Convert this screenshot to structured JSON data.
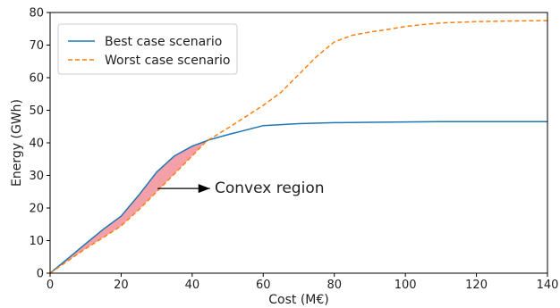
{
  "chart_data": {
    "type": "line",
    "xlabel": "Cost (M€)",
    "ylabel": "Energy (GWh)",
    "xlim": [
      0,
      140
    ],
    "ylim": [
      0,
      80
    ],
    "x_ticks": [
      0,
      20,
      40,
      60,
      80,
      100,
      120,
      140
    ],
    "y_ticks": [
      0,
      10,
      20,
      30,
      40,
      50,
      60,
      70,
      80
    ],
    "grid": false,
    "legend_position": "top-left",
    "series": [
      {
        "name": "Best case scenario",
        "color": "#1f77b4",
        "style": "solid",
        "points": [
          [
            0,
            0
          ],
          [
            5,
            4.5
          ],
          [
            10,
            9
          ],
          [
            15,
            13.5
          ],
          [
            20,
            17.5
          ],
          [
            25,
            24
          ],
          [
            30,
            31
          ],
          [
            35,
            36
          ],
          [
            40,
            39
          ],
          [
            45,
            41
          ],
          [
            50,
            42.5
          ],
          [
            60,
            45.3
          ],
          [
            70,
            45.9
          ],
          [
            80,
            46.2
          ],
          [
            90,
            46.3
          ],
          [
            100,
            46.4
          ],
          [
            110,
            46.5
          ],
          [
            120,
            46.5
          ],
          [
            130,
            46.5
          ],
          [
            140,
            46.5
          ]
        ]
      },
      {
        "name": "Worst case scenario",
        "color": "#ff7f0e",
        "style": "dashed",
        "points": [
          [
            0,
            0
          ],
          [
            5,
            3.8
          ],
          [
            10,
            7.5
          ],
          [
            15,
            11
          ],
          [
            20,
            14.5
          ],
          [
            25,
            19.5
          ],
          [
            30,
            25
          ],
          [
            35,
            30.5
          ],
          [
            40,
            36
          ],
          [
            44,
            40.5
          ],
          [
            50,
            44.5
          ],
          [
            60,
            51.5
          ],
          [
            65,
            55.5
          ],
          [
            70,
            61
          ],
          [
            75,
            66.5
          ],
          [
            80,
            71
          ],
          [
            85,
            73
          ],
          [
            90,
            74
          ],
          [
            95,
            74.8
          ],
          [
            100,
            75.7
          ],
          [
            105,
            76.3
          ],
          [
            110,
            76.8
          ],
          [
            120,
            77.2
          ],
          [
            130,
            77.4
          ],
          [
            140,
            77.5
          ]
        ]
      }
    ],
    "annotation": {
      "text": "Convex region",
      "arrow_from": [
        45,
        26
      ],
      "arrow_to": [
        28,
        26
      ],
      "region_color": "#f4a0a8"
    }
  }
}
